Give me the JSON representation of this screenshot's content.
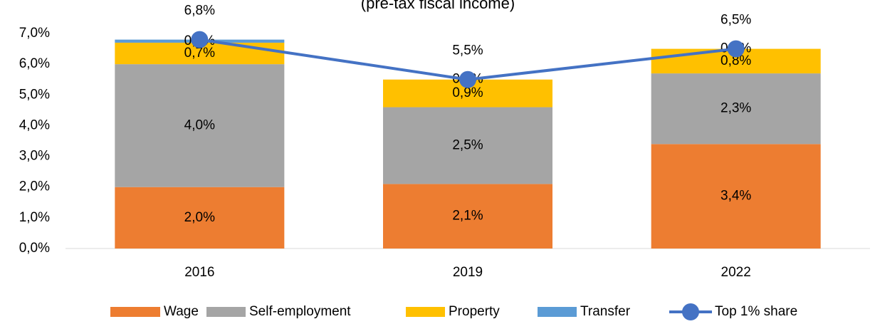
{
  "chart_data": {
    "type": "bar",
    "subtitle": "(pre-tax fiscal income)",
    "categories": [
      "2016",
      "2019",
      "2022"
    ],
    "series": [
      {
        "name": "Wage",
        "color": "#ed7d31",
        "values": [
          2.0,
          2.1,
          3.4
        ],
        "value_labels": [
          "2,0%",
          "2,1%",
          "3,4%"
        ]
      },
      {
        "name": "Self-employment",
        "color": "#a5a5a5",
        "values": [
          4.0,
          2.5,
          2.3
        ],
        "value_labels": [
          "4,0%",
          "2,5%",
          "2,3%"
        ]
      },
      {
        "name": "Property",
        "color": "#ffc000",
        "values": [
          0.7,
          0.9,
          0.8
        ],
        "value_labels": [
          "0,7%",
          "0,9%",
          "0,8%"
        ]
      },
      {
        "name": "Transfer",
        "color": "#5b9bd5",
        "values": [
          0.1,
          0.0,
          0.0
        ],
        "value_labels": [
          "0,1%",
          "0,0%",
          "0,0%"
        ]
      },
      {
        "name": "Top 1% share",
        "type": "line",
        "color": "#4472c4",
        "values": [
          6.8,
          5.5,
          6.5
        ],
        "value_labels": [
          "6,8%",
          "5,5%",
          "6,5%"
        ]
      }
    ],
    "ylim": [
      0,
      7
    ],
    "yticks": [
      {
        "value": 0,
        "label": "0,0%"
      },
      {
        "value": 1,
        "label": "1,0%"
      },
      {
        "value": 2,
        "label": "2,0%"
      },
      {
        "value": 3,
        "label": "3,0%"
      },
      {
        "value": 4,
        "label": "4,0%"
      },
      {
        "value": 5,
        "label": "5,0%"
      },
      {
        "value": 6,
        "label": "6,0%"
      },
      {
        "value": 7,
        "label": "7,0%"
      }
    ],
    "legend": "bottom"
  }
}
